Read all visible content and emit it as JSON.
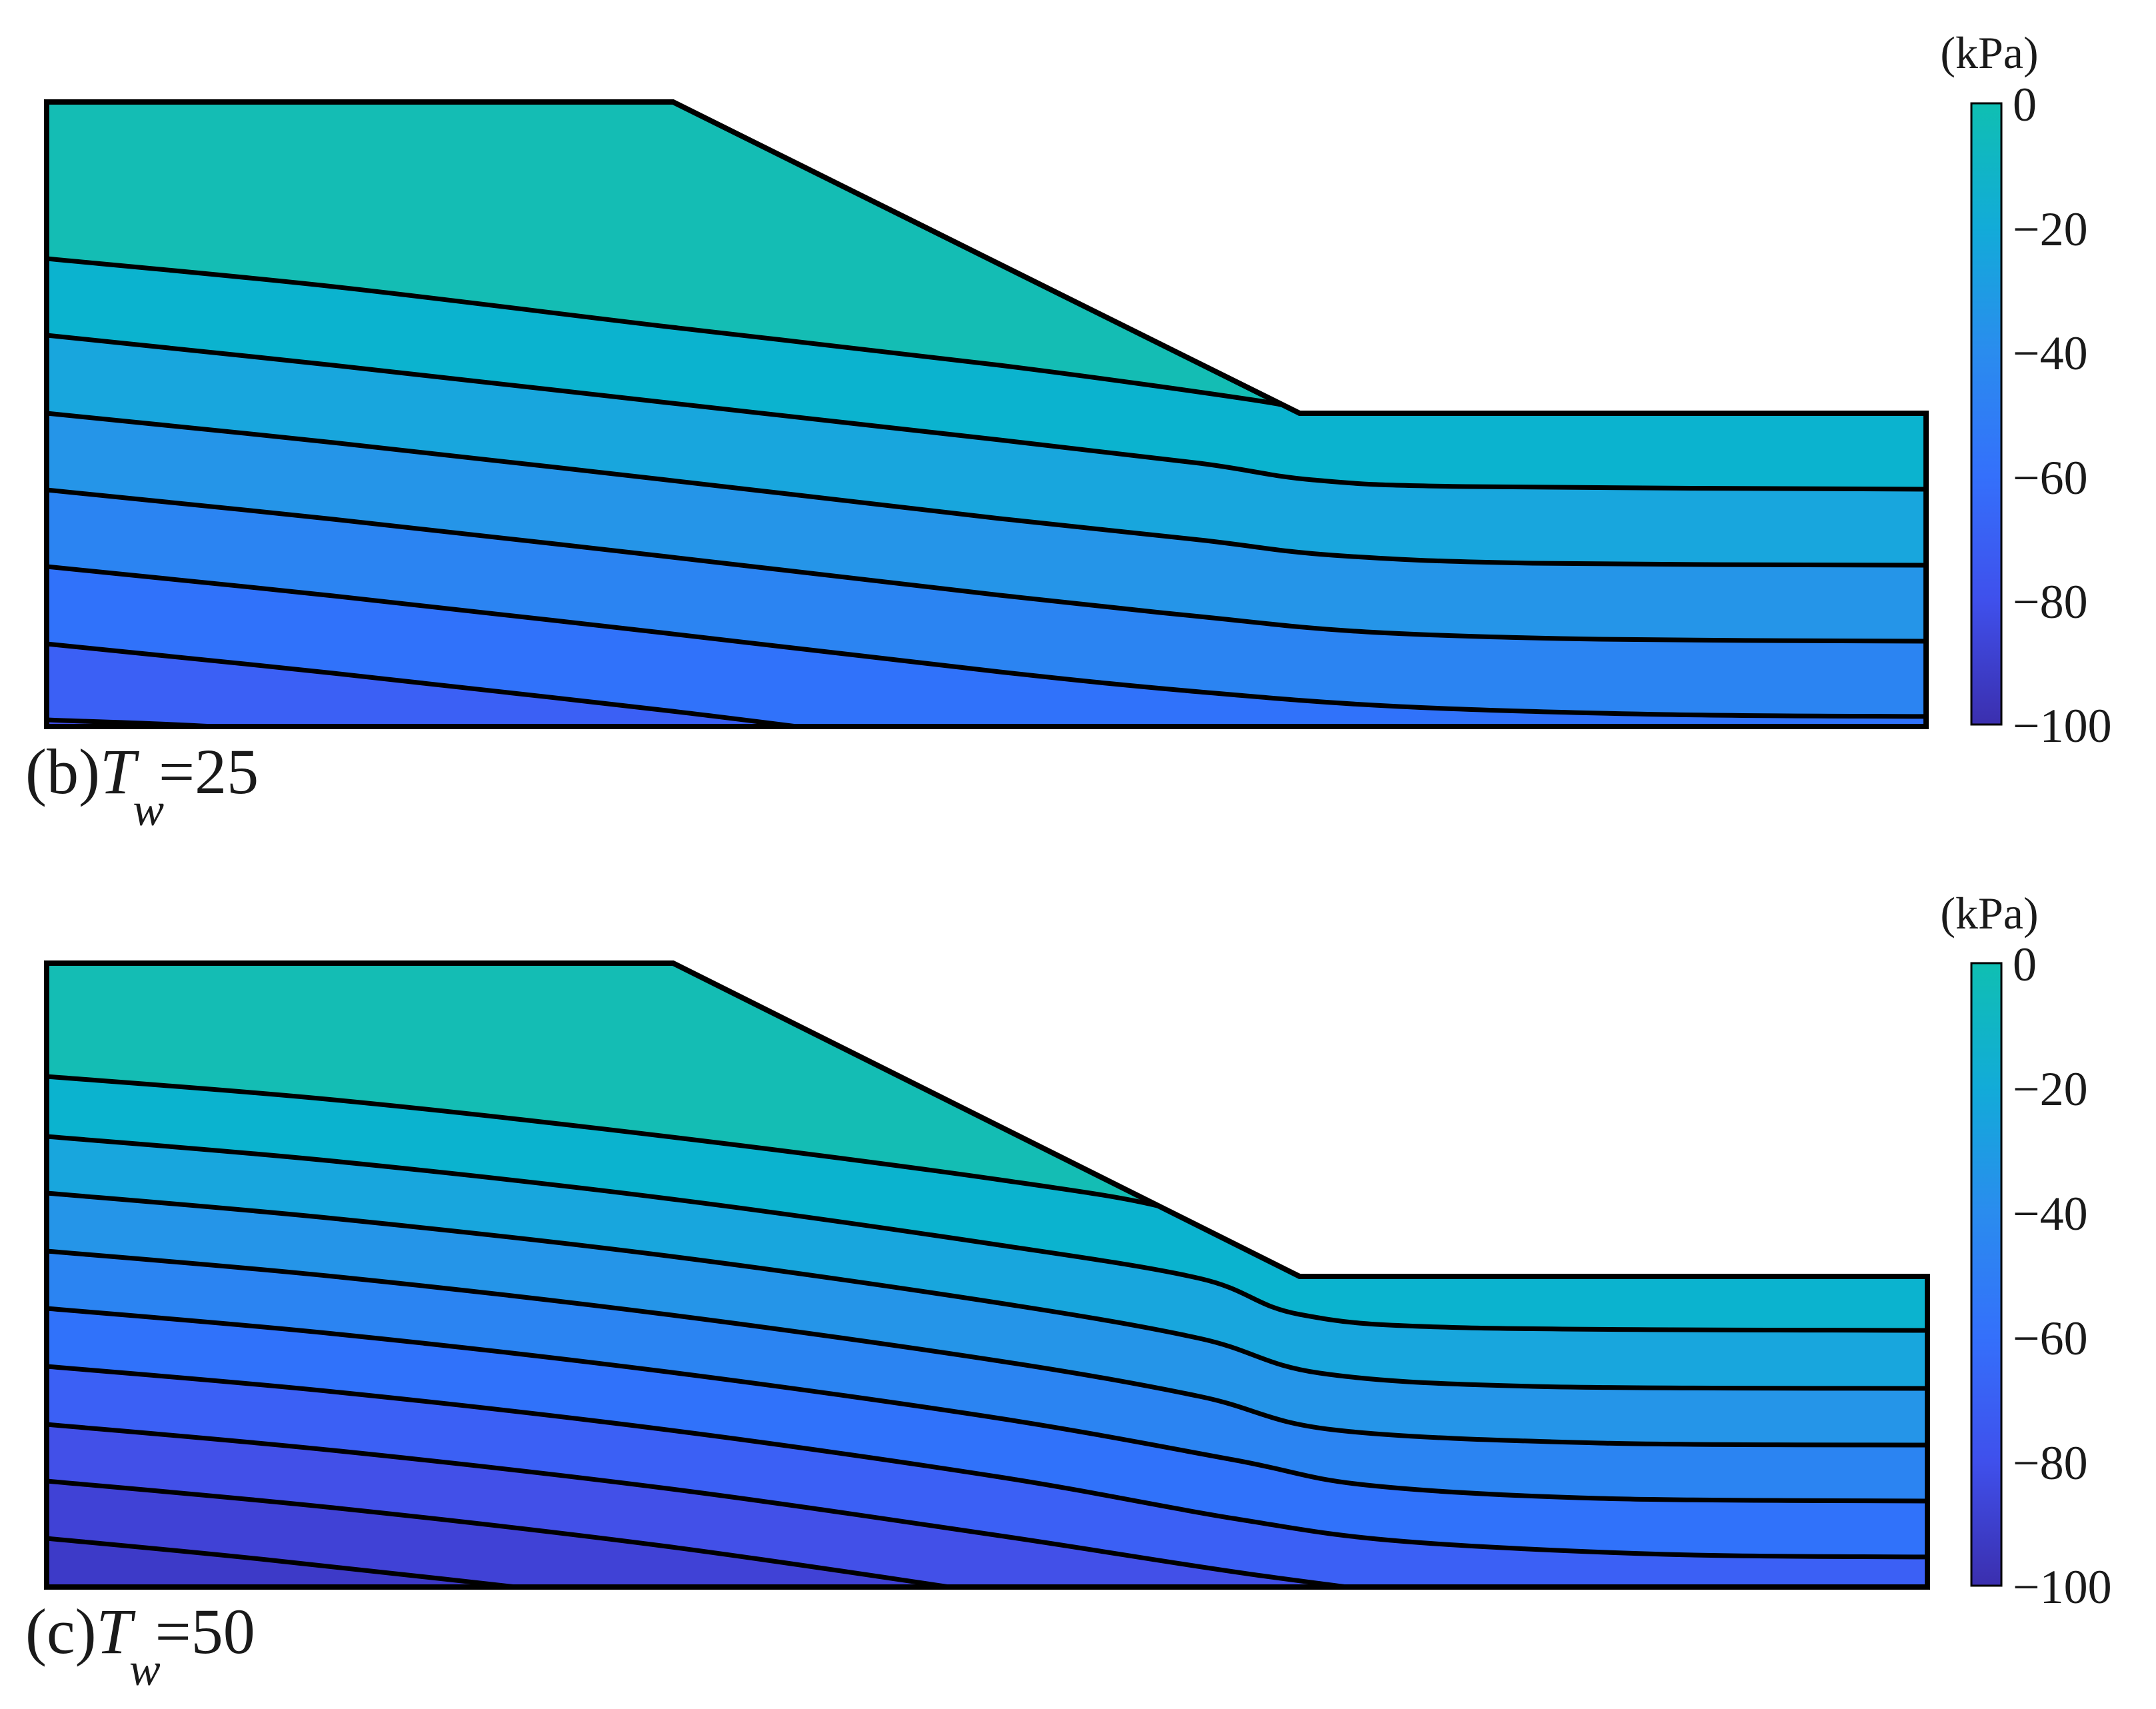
{
  "chart_data": [
    {
      "type": "filled-contour",
      "panel": "(b)",
      "label_prefix": "(b)",
      "label_var": "T",
      "label_sub": "w",
      "label_value": "=25",
      "colorbar": {
        "unit": "(kPa)",
        "ticks": [
          "0",
          "−20",
          "−40",
          "−60",
          "−80",
          "−100"
        ],
        "min": -100,
        "max": 0
      },
      "contour_bands": 8
    },
    {
      "type": "filled-contour",
      "panel": "(c)",
      "label_prefix": "(c)",
      "label_var": "T",
      "label_sub": "w",
      "label_value": "=50",
      "colorbar": {
        "unit": "(kPa)",
        "ticks": [
          "0",
          "−20",
          "−40",
          "−60",
          "−80",
          "−100"
        ],
        "min": -100,
        "max": 0
      },
      "contour_bands": 11
    }
  ],
  "colors": {
    "band_0": "#14bdb4",
    "band_1": "#0bb3cf",
    "band_2": "#18a6dd",
    "band_3": "#2595e8",
    "band_4": "#2b84f2",
    "band_5": "#3072fa",
    "band_6": "#3b60f5",
    "band_7": "#4250e8",
    "band_8": "#4042d6",
    "band_9": "#3d3ac8",
    "band_10": "#3b33b8",
    "outline": "#000000"
  }
}
